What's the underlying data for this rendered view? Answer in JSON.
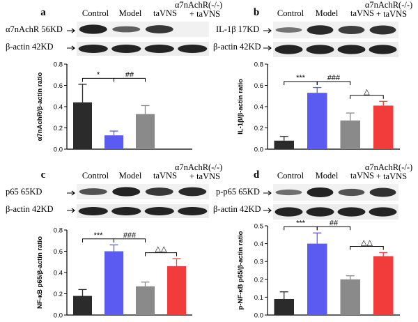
{
  "colors": {
    "control": "#2b2b2b",
    "model": "#5b5bf2",
    "tavns": "#8a8a8a",
    "ko": "#f23b3b",
    "blot": "#111111"
  },
  "panels": [
    {
      "id": "a",
      "letter": "a",
      "lanes": [
        "Control",
        "Model",
        "taVNS"
      ],
      "ko_label_1": "α7nAchR(-/-)",
      "ko_label_2": "+ taVNS",
      "blot_label": "α7nAchR 56KD",
      "actin_label": "β-actin 42KD",
      "chart_data": {
        "type": "bar",
        "categories": [
          "Control",
          "Model",
          "taVNS",
          "α7nAchR(-/-) + taVNS"
        ],
        "values": [
          0.44,
          0.13,
          0.33,
          0
        ],
        "errors": [
          0.17,
          0.04,
          0.08,
          0
        ],
        "ylabel": "α7nAchR/β-actin ratio",
        "ylim": [
          0,
          0.8
        ],
        "ticks": [
          "0.0",
          "0.2",
          "0.4",
          "0.6",
          "0.8"
        ],
        "sig": [
          {
            "label": "*",
            "from": 0,
            "to": 1
          },
          {
            "label": "##",
            "from": 1,
            "to": 2
          }
        ]
      }
    },
    {
      "id": "b",
      "letter": "b",
      "lanes": [
        "Control",
        "Model",
        "taVNS"
      ],
      "ko_label_1": "α7nAchR(-/-)",
      "ko_label_2": "+ taVNS",
      "blot_label": "IL-1β 17KD",
      "actin_label": "β-actin 42KD",
      "chart_data": {
        "type": "bar",
        "categories": [
          "Control",
          "Model",
          "taVNS",
          "α7nAchR(-/-) + taVNS"
        ],
        "values": [
          0.08,
          0.53,
          0.27,
          0.41
        ],
        "errors": [
          0.04,
          0.05,
          0.07,
          0.04
        ],
        "ylabel": "IL-1β/β-actin ratio",
        "ylim": [
          0,
          0.8
        ],
        "ticks": [
          "0.0",
          "0.2",
          "0.4",
          "0.6",
          "0.8"
        ],
        "sig": [
          {
            "label": "***",
            "from": 0,
            "to": 1
          },
          {
            "label": "###",
            "from": 1,
            "to": 2
          },
          {
            "label": "△",
            "from": 2,
            "to": 3
          }
        ]
      }
    },
    {
      "id": "c",
      "letter": "c",
      "lanes": [
        "Control",
        "Model",
        "taVNS"
      ],
      "ko_label_1": "α7nAchR(-/-)",
      "ko_label_2": "+ taVNS",
      "blot_label": "p65 65KD",
      "actin_label": "β-actin 42KD",
      "chart_data": {
        "type": "bar",
        "categories": [
          "Control",
          "Model",
          "taVNS",
          "α7nAchR(-/-) + taVNS"
        ],
        "values": [
          0.18,
          0.6,
          0.27,
          0.46
        ],
        "errors": [
          0.06,
          0.06,
          0.04,
          0.07
        ],
        "ylabel": "NF-κB p65/β-actin ratio",
        "ylim": [
          0,
          0.8
        ],
        "ticks": [
          "0.0",
          "0.2",
          "0.4",
          "0.6",
          "0.8"
        ],
        "sig": [
          {
            "label": "***",
            "from": 0,
            "to": 1
          },
          {
            "label": "###",
            "from": 1,
            "to": 2
          },
          {
            "label": "△△",
            "from": 2,
            "to": 3
          }
        ]
      }
    },
    {
      "id": "d",
      "letter": "d",
      "lanes": [
        "Control",
        "Model",
        "taVNS"
      ],
      "ko_label_1": "α7nAchR(-/-)",
      "ko_label_2": "+ taVNS",
      "blot_label": "p-p65 65KD",
      "actin_label": "β-actin 42KD",
      "chart_data": {
        "type": "bar",
        "categories": [
          "Control",
          "Model",
          "taVNS",
          "α7nAchR(-/-) + taVNS"
        ],
        "values": [
          0.09,
          0.4,
          0.2,
          0.33
        ],
        "errors": [
          0.04,
          0.06,
          0.02,
          0.02
        ],
        "ylabel": "p-NF-κB p65/β-actin ratio",
        "ylim": [
          0,
          0.5
        ],
        "ticks": [
          "0.0",
          "0.1",
          "0.2",
          "0.3",
          "0.4",
          "0.5"
        ],
        "sig": [
          {
            "label": "***",
            "from": 0,
            "to": 1
          },
          {
            "label": "##",
            "from": 1,
            "to": 2
          },
          {
            "label": "△△",
            "from": 2,
            "to": 3
          }
        ]
      }
    }
  ]
}
